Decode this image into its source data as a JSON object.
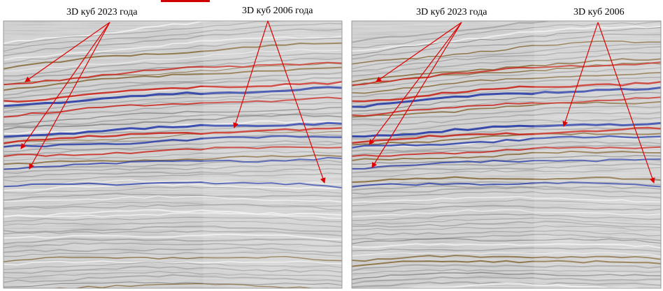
{
  "labels": {
    "left_2023": "3D куб 2023 года",
    "left_2006": "3D куб 2006 года",
    "right_2023": "3D куб 2023 года",
    "right_2006": "3D куб 2006"
  },
  "colors": {
    "red_horizon": "#c8281e",
    "blue_horizon": "#2a3ea8",
    "brown_horizon": "#7a5a22",
    "annotation": "#e00000",
    "background": "#dcdcdc"
  }
}
